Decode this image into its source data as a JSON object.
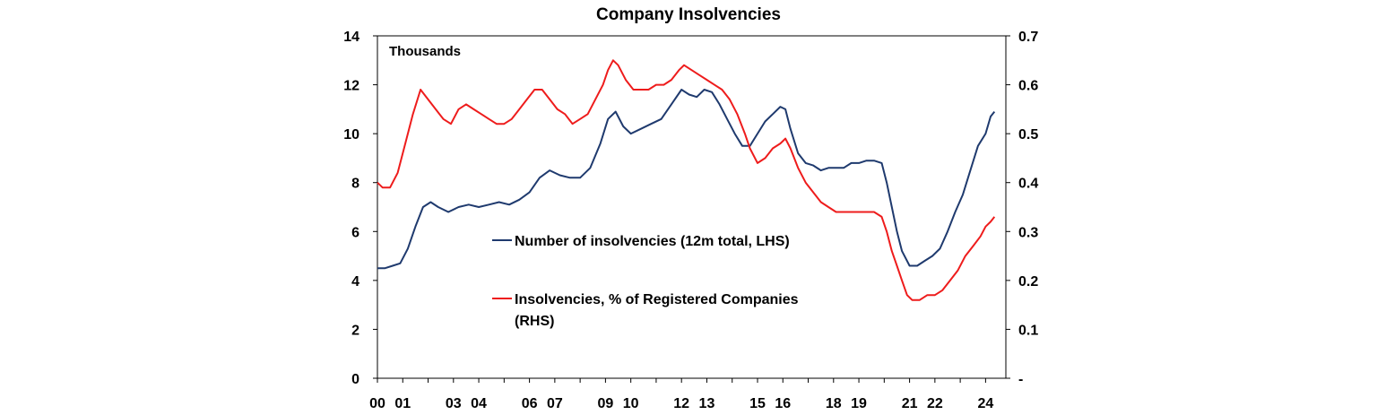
{
  "chart_data": {
    "type": "line",
    "title": "Company Insolvencies",
    "y_left_unit": "Thousands",
    "y_left": {
      "range": [
        0,
        14
      ],
      "ticks": [
        "0",
        "2",
        "4",
        "6",
        "8",
        "10",
        "12",
        "14"
      ]
    },
    "y_right": {
      "range": [
        0,
        0.7
      ],
      "ticks": [
        "-",
        "0.1",
        "0.2",
        "0.3",
        "0.4",
        "0.5",
        "0.6",
        "0.7"
      ]
    },
    "x_range": [
      2000,
      2024.8
    ],
    "x_ticks": [
      {
        "label": "00",
        "year": 2000
      },
      {
        "label": "01",
        "year": 2001
      },
      {
        "label": "03",
        "year": 2003
      },
      {
        "label": "04",
        "year": 2004
      },
      {
        "label": "06",
        "year": 2006
      },
      {
        "label": "07",
        "year": 2007
      },
      {
        "label": "09",
        "year": 2009
      },
      {
        "label": "10",
        "year": 2010
      },
      {
        "label": "12",
        "year": 2012
      },
      {
        "label": "13",
        "year": 2013
      },
      {
        "label": "15",
        "year": 2015
      },
      {
        "label": "16",
        "year": 2016
      },
      {
        "label": "18",
        "year": 2018
      },
      {
        "label": "19",
        "year": 2019
      },
      {
        "label": "21",
        "year": 2021
      },
      {
        "label": "22",
        "year": 2022
      },
      {
        "label": "24",
        "year": 2024
      }
    ],
    "grid": false,
    "legend_position": "center",
    "series": [
      {
        "name": "Number of insolvencies (12m total, LHS)",
        "axis": "left",
        "color": "#1f3a6e",
        "x": [
          2000.0,
          2000.3,
          2000.6,
          2000.9,
          2001.2,
          2001.5,
          2001.8,
          2002.1,
          2002.4,
          2002.8,
          2003.2,
          2003.6,
          2004.0,
          2004.4,
          2004.8,
          2005.2,
          2005.6,
          2006.0,
          2006.4,
          2006.8,
          2007.2,
          2007.6,
          2008.0,
          2008.4,
          2008.8,
          2009.1,
          2009.4,
          2009.7,
          2010.0,
          2010.4,
          2010.8,
          2011.2,
          2011.6,
          2012.0,
          2012.3,
          2012.6,
          2012.9,
          2013.2,
          2013.5,
          2013.8,
          2014.1,
          2014.4,
          2014.7,
          2015.0,
          2015.3,
          2015.6,
          2015.9,
          2016.1,
          2016.3,
          2016.6,
          2016.9,
          2017.2,
          2017.5,
          2017.8,
          2018.1,
          2018.4,
          2018.7,
          2019.0,
          2019.3,
          2019.6,
          2019.9,
          2020.1,
          2020.3,
          2020.5,
          2020.7,
          2021.0,
          2021.3,
          2021.6,
          2021.9,
          2022.2,
          2022.5,
          2022.8,
          2023.1,
          2023.4,
          2023.7,
          2024.0,
          2024.2,
          2024.35
        ],
        "values": [
          4.5,
          4.5,
          4.6,
          4.7,
          5.3,
          6.2,
          7.0,
          7.2,
          7.0,
          6.8,
          7.0,
          7.1,
          7.0,
          7.1,
          7.2,
          7.1,
          7.3,
          7.6,
          8.2,
          8.5,
          8.3,
          8.2,
          8.2,
          8.6,
          9.6,
          10.6,
          10.9,
          10.3,
          10.0,
          10.2,
          10.4,
          10.6,
          11.2,
          11.8,
          11.6,
          11.5,
          11.8,
          11.7,
          11.2,
          10.6,
          10.0,
          9.5,
          9.5,
          10.0,
          10.5,
          10.8,
          11.1,
          11.0,
          10.2,
          9.2,
          8.8,
          8.7,
          8.5,
          8.6,
          8.6,
          8.6,
          8.8,
          8.8,
          8.9,
          8.9,
          8.8,
          8.0,
          7.0,
          6.0,
          5.2,
          4.6,
          4.6,
          4.8,
          5.0,
          5.3,
          6.0,
          6.8,
          7.5,
          8.5,
          9.5,
          10.0,
          10.7,
          10.9
        ]
      },
      {
        "name": "Insolvencies, % of Registered Companies (RHS)",
        "axis": "right",
        "color": "#ee1c1c",
        "x": [
          2000.0,
          2000.2,
          2000.5,
          2000.8,
          2001.1,
          2001.4,
          2001.7,
          2002.0,
          2002.3,
          2002.6,
          2002.9,
          2003.2,
          2003.5,
          2003.8,
          2004.1,
          2004.4,
          2004.7,
          2005.0,
          2005.3,
          2005.6,
          2005.9,
          2006.2,
          2006.5,
          2006.8,
          2007.1,
          2007.4,
          2007.7,
          2008.0,
          2008.3,
          2008.6,
          2008.9,
          2009.1,
          2009.3,
          2009.5,
          2009.8,
          2010.1,
          2010.4,
          2010.7,
          2011.0,
          2011.3,
          2011.6,
          2011.9,
          2012.1,
          2012.4,
          2012.7,
          2013.0,
          2013.3,
          2013.6,
          2013.9,
          2014.2,
          2014.5,
          2014.7,
          2015.0,
          2015.3,
          2015.6,
          2015.9,
          2016.1,
          2016.3,
          2016.6,
          2016.9,
          2017.2,
          2017.5,
          2017.8,
          2018.1,
          2018.4,
          2018.7,
          2019.0,
          2019.3,
          2019.6,
          2019.9,
          2020.1,
          2020.3,
          2020.5,
          2020.7,
          2020.9,
          2021.1,
          2021.4,
          2021.7,
          2022.0,
          2022.3,
          2022.6,
          2022.9,
          2023.2,
          2023.5,
          2023.8,
          2024.0,
          2024.2,
          2024.35
        ],
        "values": [
          0.4,
          0.39,
          0.39,
          0.42,
          0.48,
          0.54,
          0.59,
          0.57,
          0.55,
          0.53,
          0.52,
          0.55,
          0.56,
          0.55,
          0.54,
          0.53,
          0.52,
          0.52,
          0.53,
          0.55,
          0.57,
          0.59,
          0.59,
          0.57,
          0.55,
          0.54,
          0.52,
          0.53,
          0.54,
          0.57,
          0.6,
          0.63,
          0.65,
          0.64,
          0.61,
          0.59,
          0.59,
          0.59,
          0.6,
          0.6,
          0.61,
          0.63,
          0.64,
          0.63,
          0.62,
          0.61,
          0.6,
          0.59,
          0.57,
          0.54,
          0.5,
          0.47,
          0.44,
          0.45,
          0.47,
          0.48,
          0.49,
          0.47,
          0.43,
          0.4,
          0.38,
          0.36,
          0.35,
          0.34,
          0.34,
          0.34,
          0.34,
          0.34,
          0.34,
          0.33,
          0.3,
          0.26,
          0.23,
          0.2,
          0.17,
          0.16,
          0.16,
          0.17,
          0.17,
          0.18,
          0.2,
          0.22,
          0.25,
          0.27,
          0.29,
          0.31,
          0.32,
          0.33
        ]
      }
    ]
  }
}
